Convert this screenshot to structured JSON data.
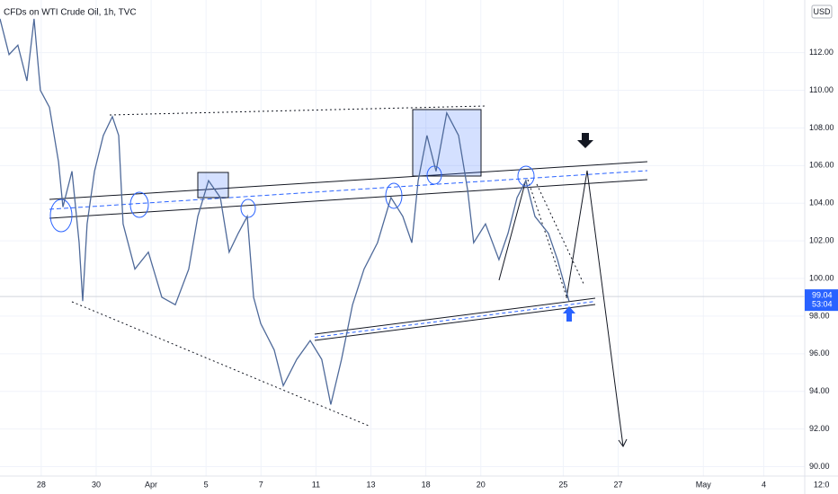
{
  "chart_data": {
    "type": "line",
    "title": "CFDs on WTI Crude Oil, 1h, TVC",
    "currency": "USD",
    "last_price": 99.04,
    "countdown": "53:04",
    "series": [
      {
        "name": "WTI",
        "color": "#4f6a9a",
        "x": [
          -1.5,
          -1.17,
          -0.85,
          -0.52,
          -0.26,
          -0.03,
          0.3,
          0.63,
          0.79,
          1.12,
          1.38,
          1.51,
          1.67,
          1.94,
          2.26,
          2.59,
          2.82,
          2.98,
          3.41,
          3.9,
          4.39,
          4.88,
          5.37,
          5.7,
          6.09,
          6.52,
          6.84,
          7.17,
          7.5,
          7.73,
          7.99,
          8.48,
          8.81,
          9.3,
          9.79,
          10.21,
          10.54,
          10.93,
          11.33,
          11.75,
          12.24,
          12.73,
          13.16,
          13.49,
          13.72,
          14.04,
          14.37,
          14.76,
          15.19,
          15.52,
          15.74,
          16.17,
          16.66,
          16.99,
          17.32,
          17.64,
          17.97,
          18.46,
          18.79,
          19.21
        ],
        "values": [
          113.8,
          111.9,
          112.4,
          110.5,
          113.8,
          110.0,
          109.1,
          106.2,
          103.8,
          105.7,
          101.9,
          98.8,
          102.9,
          105.7,
          107.6,
          108.6,
          107.6,
          102.9,
          100.5,
          101.4,
          99.0,
          98.6,
          100.5,
          103.3,
          105.2,
          104.3,
          101.4,
          102.4,
          103.3,
          99.0,
          97.6,
          96.2,
          94.3,
          95.7,
          96.7,
          95.7,
          93.3,
          95.7,
          98.6,
          100.5,
          101.9,
          104.3,
          103.3,
          101.9,
          105.2,
          107.6,
          105.7,
          108.8,
          107.6,
          104.7,
          101.9,
          102.9,
          101.0,
          102.4,
          104.3,
          105.2,
          103.3,
          102.4,
          101.0,
          98.8
        ]
      }
    ],
    "xlim": [
      -1.5,
      29
    ],
    "xticks": [
      {
        "value": 0,
        "label": "28"
      },
      {
        "value": 2,
        "label": "30"
      },
      {
        "value": 4,
        "label": "Apr"
      },
      {
        "value": 6,
        "label": "5"
      },
      {
        "value": 8,
        "label": "7"
      },
      {
        "value": 10,
        "label": "11"
      },
      {
        "value": 12,
        "label": "13"
      },
      {
        "value": 14,
        "label": "18"
      },
      {
        "value": 16,
        "label": "20"
      },
      {
        "value": 19,
        "label": "25"
      },
      {
        "value": 21,
        "label": "27"
      },
      {
        "value": 24.1,
        "label": "May"
      },
      {
        "value": 26.3,
        "label": "4"
      },
      {
        "value": 28.4,
        "label": "12:0"
      }
    ],
    "ylim": [
      89.5,
      114.8
    ],
    "yticks": [
      {
        "value": 90,
        "label": "90.00"
      },
      {
        "value": 92,
        "label": "92.00"
      },
      {
        "value": 94,
        "label": "94.00"
      },
      {
        "value": 96,
        "label": "96.00"
      },
      {
        "value": 98,
        "label": "98.00"
      },
      {
        "value": 100,
        "label": "100.00"
      },
      {
        "value": 102,
        "label": "102.00"
      },
      {
        "value": 104,
        "label": "104.00"
      },
      {
        "value": 106,
        "label": "106.00"
      },
      {
        "value": 108,
        "label": "108.00"
      },
      {
        "value": 110,
        "label": "110.00"
      },
      {
        "value": 112,
        "label": "112.00"
      }
    ],
    "grid": true
  }
}
